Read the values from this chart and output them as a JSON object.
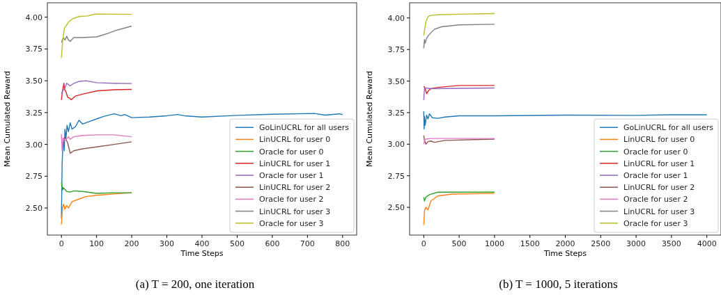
{
  "chart_data": [
    {
      "type": "line",
      "xlabel": "Time Steps",
      "ylabel": "Mean Cumulated Reward",
      "annotations": [
        "(a) T = 200, one iteration"
      ],
      "xlim": [
        -40,
        840
      ],
      "ylim": [
        2.287,
        4.113
      ],
      "xticks": [
        0,
        100,
        200,
        300,
        400,
        500,
        600,
        700,
        800
      ],
      "yticks": [
        {
          "value": 2.5,
          "label": "2.50"
        },
        {
          "value": 2.75,
          "label": "2.75"
        },
        {
          "value": 3,
          "label": "3.00"
        },
        {
          "value": 3.25,
          "label": "3.25"
        },
        {
          "value": 3.5,
          "label": "3.50"
        },
        {
          "value": 3.75,
          "label": "3.75"
        },
        {
          "value": 4,
          "label": "4.00"
        }
      ],
      "grid": false,
      "legend": "bottom right",
      "line_style": "solid",
      "series": [
        {
          "name": "GoLinUCRL for all users",
          "color": "#1f77b4",
          "x": [
            0,
            2,
            5,
            8,
            10,
            13,
            16,
            20,
            25,
            30,
            40,
            50,
            60,
            80,
            100,
            120,
            150,
            170,
            180,
            200,
            250,
            300,
            330,
            350,
            400,
            500,
            600,
            720,
            750,
            790,
            800
          ],
          "values": [
            2.42,
            2.85,
            3.05,
            2.95,
            3.12,
            3.05,
            3.15,
            3.1,
            3.17,
            3.12,
            3.14,
            3.19,
            3.16,
            3.18,
            3.2,
            3.22,
            3.24,
            3.225,
            3.235,
            3.21,
            3.215,
            3.225,
            3.235,
            3.225,
            3.215,
            3.228,
            3.237,
            3.243,
            3.23,
            3.24,
            3.234
          ]
        },
        {
          "name": "LinUCRL for user 0",
          "color": "#ff7f0e",
          "x": [
            0,
            3,
            6,
            10,
            15,
            20,
            30,
            50,
            70,
            100,
            150,
            200
          ],
          "values": [
            2.37,
            2.5,
            2.53,
            2.49,
            2.52,
            2.5,
            2.55,
            2.57,
            2.59,
            2.6,
            2.61,
            2.62
          ]
        },
        {
          "name": "Oracle for user 0",
          "color": "#2ca02c",
          "x": [
            0,
            3,
            5,
            15,
            25,
            35,
            60,
            100,
            150,
            200
          ],
          "values": [
            2.7,
            2.64,
            2.66,
            2.63,
            2.625,
            2.635,
            2.63,
            2.615,
            2.62,
            2.62
          ]
        },
        {
          "name": "LinUCRL for user 1",
          "color": "#d62728",
          "x": [
            0,
            3,
            7,
            9,
            12,
            18,
            25,
            28,
            40,
            60,
            100,
            150,
            200
          ],
          "values": [
            3.35,
            3.42,
            3.48,
            3.43,
            3.42,
            3.37,
            3.36,
            3.35,
            3.38,
            3.395,
            3.42,
            3.43,
            3.432
          ]
        },
        {
          "name": "Oracle for user 1",
          "color": "#9467bd",
          "x": [
            0,
            5,
            10,
            15,
            20,
            25,
            35,
            50,
            70,
            100,
            150,
            200
          ],
          "values": [
            3.4,
            3.43,
            3.44,
            3.48,
            3.47,
            3.46,
            3.48,
            3.495,
            3.5,
            3.485,
            3.48,
            3.478
          ]
        },
        {
          "name": "LinUCRL for user 2",
          "color": "#8c564b",
          "x": [
            5,
            10,
            18,
            25,
            35,
            60,
            100,
            150,
            200
          ],
          "values": [
            3.04,
            3.055,
            3.01,
            2.93,
            2.95,
            2.965,
            2.98,
            3.0,
            3.02
          ]
        },
        {
          "name": "Oracle for user 2",
          "color": "#e377c2",
          "x": [
            0,
            2,
            5,
            10,
            20,
            25,
            35,
            60,
            100,
            150,
            200
          ],
          "values": [
            3.08,
            2.95,
            3.05,
            3.03,
            3.06,
            3.04,
            3.06,
            3.07,
            3.075,
            3.075,
            3.06
          ]
        },
        {
          "name": "LinUCRL for user 3",
          "color": "#7f7f7f",
          "x": [
            0,
            5,
            10,
            15,
            20,
            25,
            35,
            60,
            100,
            130,
            160,
            200
          ],
          "values": [
            3.8,
            3.84,
            3.82,
            3.85,
            3.82,
            3.81,
            3.84,
            3.84,
            3.845,
            3.87,
            3.9,
            3.93
          ]
        },
        {
          "name": "Oracle for user 3",
          "color": "#bcbd22",
          "x": [
            0,
            3,
            8,
            20,
            30,
            50,
            75,
            90,
            100,
            200
          ],
          "values": [
            3.68,
            3.8,
            3.91,
            3.96,
            3.985,
            4.005,
            4.01,
            4.02,
            4.025,
            4.022
          ]
        }
      ]
    },
    {
      "type": "line",
      "xlabel": "Time Steps",
      "ylabel": "Mean Cumulated Reward",
      "annotations": [
        "(b) T = 1000, 5 iterations"
      ],
      "xlim": [
        -200,
        4200
      ],
      "ylim": [
        2.28,
        4.12
      ],
      "xticks": [
        0,
        500,
        1000,
        1500,
        2000,
        2500,
        3000,
        3500,
        4000
      ],
      "yticks": [
        {
          "value": 2.5,
          "label": "2.50"
        },
        {
          "value": 2.75,
          "label": "2.75"
        },
        {
          "value": 3,
          "label": "3.00"
        },
        {
          "value": 3.25,
          "label": "3.25"
        },
        {
          "value": 3.5,
          "label": "3.50"
        },
        {
          "value": 3.75,
          "label": "3.75"
        },
        {
          "value": 4,
          "label": "4.00"
        }
      ],
      "grid": false,
      "legend": "bottom right",
      "line_style": "solid",
      "series": [
        {
          "name": "GoLinUCRL for all users",
          "color": "#1f77b4",
          "x": [
            0,
            5,
            10,
            20,
            40,
            60,
            80,
            120,
            200,
            300,
            500,
            1000,
            2000,
            3000,
            3500,
            4000
          ],
          "values": [
            3.26,
            3.12,
            3.22,
            3.15,
            3.23,
            3.2,
            3.24,
            3.21,
            3.205,
            3.215,
            3.225,
            3.225,
            3.23,
            3.228,
            3.233,
            3.233
          ]
        },
        {
          "name": "LinUCRL for user 0",
          "color": "#ff7f0e",
          "x": [
            0,
            10,
            30,
            60,
            100,
            200,
            400,
            1000
          ],
          "values": [
            2.36,
            2.47,
            2.5,
            2.48,
            2.55,
            2.59,
            2.605,
            2.61
          ]
        },
        {
          "name": "Oracle for user 0",
          "color": "#2ca02c",
          "x": [
            0,
            10,
            30,
            80,
            200,
            1000
          ],
          "values": [
            2.58,
            2.55,
            2.58,
            2.6,
            2.62,
            2.62
          ]
        },
        {
          "name": "LinUCRL for user 1",
          "color": "#d62728",
          "x": [
            0,
            20,
            40,
            60,
            100,
            200,
            500,
            1000
          ],
          "values": [
            3.46,
            3.44,
            3.4,
            3.42,
            3.44,
            3.45,
            3.465,
            3.465
          ]
        },
        {
          "name": "Oracle for user 1",
          "color": "#9467bd",
          "x": [
            0,
            10,
            30,
            100,
            1000
          ],
          "values": [
            3.35,
            3.44,
            3.445,
            3.44,
            3.445
          ]
        },
        {
          "name": "LinUCRL for user 2",
          "color": "#8c564b",
          "x": [
            0,
            10,
            30,
            60,
            100,
            150,
            300,
            1000
          ],
          "values": [
            3.07,
            3.03,
            3.0,
            3.02,
            3.025,
            3.015,
            3.03,
            3.04
          ]
        },
        {
          "name": "Oracle for user 2",
          "color": "#e377c2",
          "x": [
            0,
            10,
            30,
            100,
            1000
          ],
          "values": [
            3.0,
            3.03,
            3.04,
            3.045,
            3.045
          ]
        },
        {
          "name": "LinUCRL for user 3",
          "color": "#7f7f7f",
          "x": [
            0,
            10,
            20,
            40,
            80,
            150,
            250,
            500,
            1000
          ],
          "values": [
            3.76,
            3.83,
            3.8,
            3.84,
            3.87,
            3.91,
            3.93,
            3.945,
            3.95
          ]
        },
        {
          "name": "Oracle for user 3",
          "color": "#bcbd22",
          "x": [
            0,
            10,
            30,
            60,
            100,
            200,
            500,
            1000
          ],
          "values": [
            3.86,
            3.9,
            3.97,
            4.01,
            4.02,
            4.025,
            4.03,
            4.035
          ]
        }
      ]
    }
  ]
}
